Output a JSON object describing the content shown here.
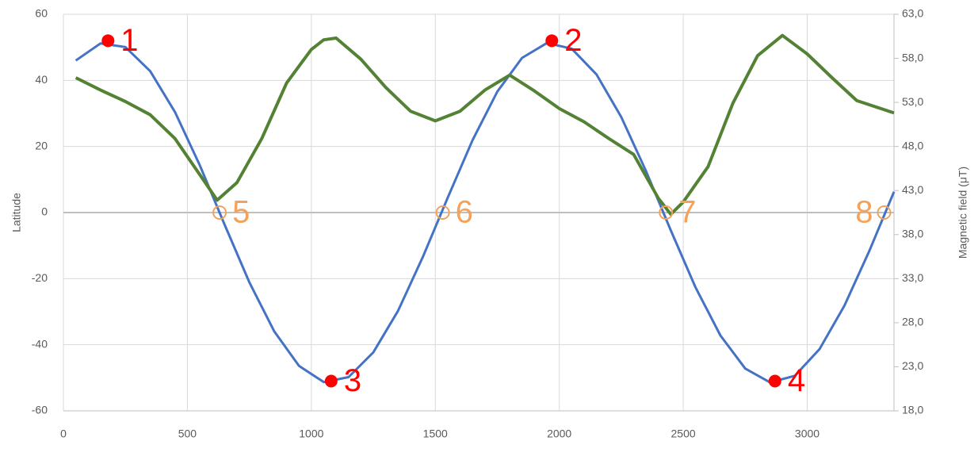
{
  "chart_data": {
    "type": "line",
    "y_label": "Latitude",
    "y2_label": "Magnetic field (μT)",
    "xlim": [
      0,
      3350
    ],
    "xticks": [
      0,
      500,
      1000,
      1500,
      2000,
      2500,
      3000
    ],
    "ylim": [
      -60,
      60
    ],
    "yticks": [
      -60,
      -40,
      -20,
      0,
      20,
      40,
      60
    ],
    "y2lim": [
      18,
      63
    ],
    "y2ticks": [
      {
        "value": 18,
        "label": "18,0"
      },
      {
        "value": 23,
        "label": "23,0"
      },
      {
        "value": 28,
        "label": "28,0"
      },
      {
        "value": 33,
        "label": "33,0"
      },
      {
        "value": 38,
        "label": "38,0"
      },
      {
        "value": 43,
        "label": "43,0"
      },
      {
        "value": 48,
        "label": "48,0"
      },
      {
        "value": 53,
        "label": "53,0"
      },
      {
        "value": 58,
        "label": "58,0"
      },
      {
        "value": 63,
        "label": "63,0"
      }
    ],
    "grid": true,
    "series": [
      {
        "color": "#4472c4",
        "x": [
          50,
          150,
          250,
          350,
          450,
          550,
          650,
          750,
          850,
          950,
          1050,
          1150,
          1250,
          1350,
          1450,
          1550,
          1650,
          1750,
          1850,
          1950,
          2050,
          2150,
          2250,
          2350,
          2450,
          2550,
          2650,
          2750,
          2850,
          2950,
          3050,
          3150,
          3250,
          3350
        ],
        "values": [
          46.0,
          51.2,
          50.1,
          42.8,
          30.4,
          14.3,
          -3.6,
          -21.1,
          -35.9,
          -46.4,
          -51.3,
          -49.8,
          -42.3,
          -29.7,
          -13.4,
          4.5,
          21.9,
          36.6,
          46.8,
          51.3,
          49.6,
          41.8,
          28.9,
          12.5,
          -5.4,
          -22.7,
          -37.2,
          -47.2,
          -51.4,
          -49.4,
          -41.3,
          -28.2,
          -11.7,
          6.3
        ]
      },
      {
        "color": "#548235",
        "axis": "y2",
        "x": [
          50,
          150,
          250,
          350,
          450,
          550,
          620,
          700,
          800,
          900,
          1000,
          1050,
          1100,
          1200,
          1300,
          1400,
          1500,
          1600,
          1700,
          1800,
          1900,
          2000,
          2100,
          2200,
          2300,
          2400,
          2450,
          2500,
          2600,
          2700,
          2800,
          2900,
          3000,
          3100,
          3200,
          3350
        ],
        "values": [
          55.8,
          54.4,
          53.1,
          51.6,
          48.9,
          44.8,
          41.9,
          43.9,
          48.9,
          55.2,
          59.0,
          60.1,
          60.3,
          57.9,
          54.7,
          52.0,
          50.9,
          52.0,
          54.4,
          56.1,
          54.3,
          52.3,
          50.8,
          48.9,
          47.1,
          42.1,
          40.3,
          41.7,
          45.7,
          52.9,
          58.3,
          60.6,
          58.5,
          55.8,
          53.2,
          51.8
        ]
      }
    ],
    "annotations": [
      {
        "label": "1",
        "x": 180,
        "y": 52,
        "color": "#ff0000",
        "filled": true
      },
      {
        "label": "2",
        "x": 1970,
        "y": 52,
        "color": "#ff0000",
        "filled": true
      },
      {
        "label": "3",
        "x": 1080,
        "y": -51,
        "color": "#ff0000",
        "filled": true
      },
      {
        "label": "4",
        "x": 2870,
        "y": -51,
        "color": "#ff0000",
        "filled": true
      },
      {
        "label": "5",
        "x": 630,
        "y": 0,
        "color": "#f4a259",
        "filled": false
      },
      {
        "label": "6",
        "x": 1530,
        "y": 0,
        "color": "#f4a259",
        "filled": false
      },
      {
        "label": "7",
        "x": 2430,
        "y": 0,
        "color": "#f4a259",
        "filled": false
      },
      {
        "label": "8",
        "x": 3310,
        "y": 0,
        "color": "#f4a259",
        "filled": false
      }
    ]
  }
}
